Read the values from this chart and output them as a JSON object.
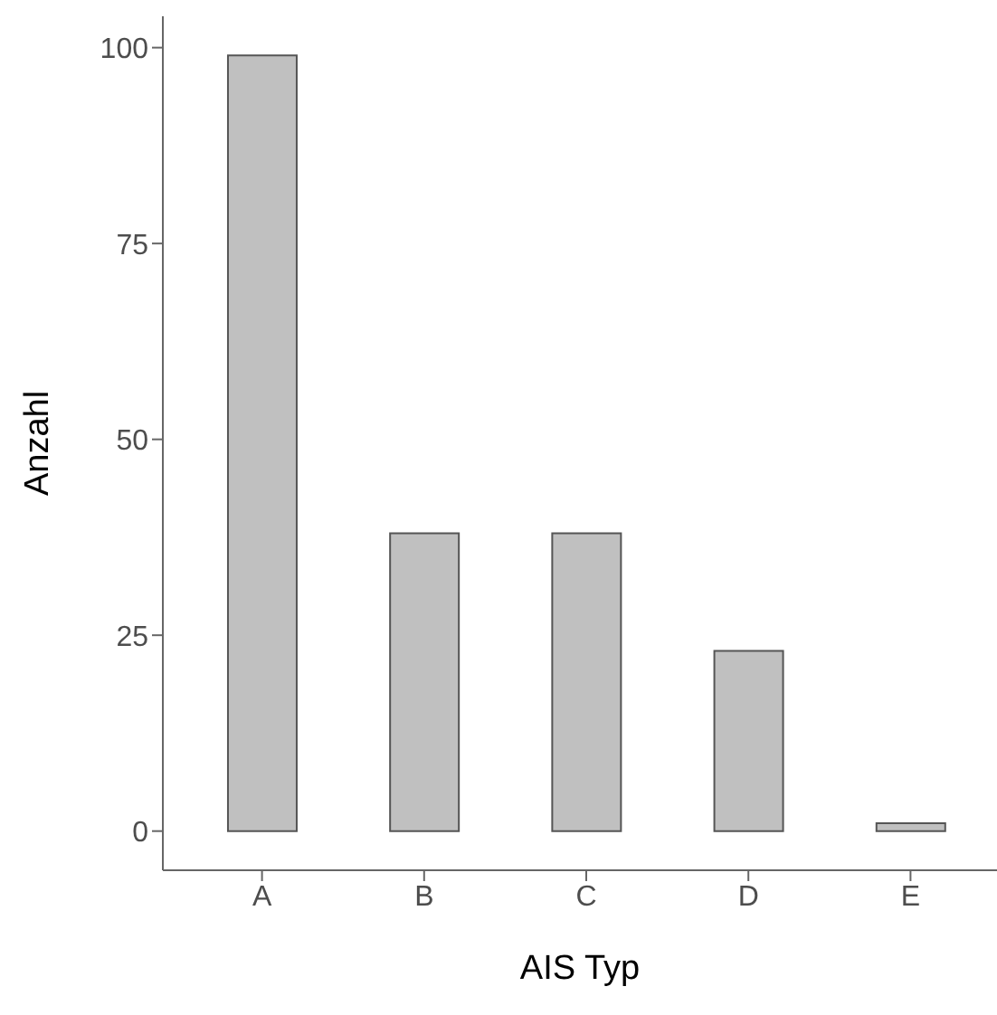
{
  "chart_data": {
    "type": "bar",
    "xlabel": "AIS Typ",
    "ylabel": "Anzahl",
    "categories": [
      "A",
      "B",
      "C",
      "D",
      "E"
    ],
    "values": [
      99,
      38,
      38,
      23,
      1
    ],
    "color": "#c0c0c0",
    "ylim": [
      -5,
      104
    ],
    "yticks": [
      0,
      25,
      50,
      75,
      100
    ],
    "grid": false
  }
}
